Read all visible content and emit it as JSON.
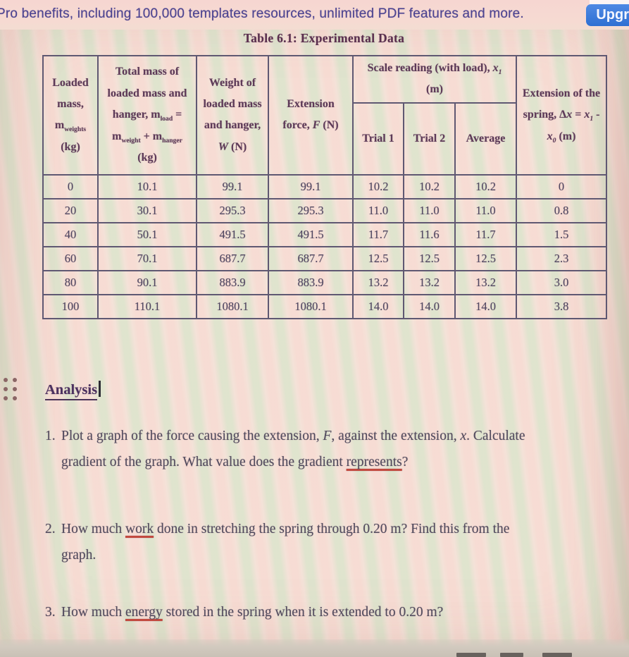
{
  "banner": {
    "text": "Pro benefits, including 100,000 templates resources, unlimited PDF features and more.",
    "upgrade_label": "Upgr",
    "button_color": "#2f6fd2",
    "text_color": "#4c4390"
  },
  "document": {
    "table_title": "Table 6.1: Experimental Data",
    "table": {
      "headers": {
        "loaded_mass_html": "Loaded mass, m<sub>weights</sub> (kg)",
        "total_mass_html": "Total mass of loaded mass and hanger, m<sub>load</sub> = m<sub>weight</sub> + m<sub>hanger</sub> (kg)",
        "weight_html": "Weight of loaded mass and hanger, <em>W</em> (N)",
        "extension_force_html": "Extension force, <em>F</em> (N)",
        "scale_reading_html": "Scale reading (with load), <em>x<sub>1</sub></em> (m)",
        "trial1": "Trial 1",
        "trial2": "Trial 2",
        "average": "Average",
        "extension_spring_html": "Extension of the spring, Δ<em>x</em> = <em>x<sub>1</sub></em> - <em>x<sub>0</sub></em> (m)"
      },
      "rows": [
        [
          "0",
          "10.1",
          "99.1",
          "99.1",
          "10.2",
          "10.2",
          "10.2",
          "0"
        ],
        [
          "20",
          "30.1",
          "295.3",
          "295.3",
          "11.0",
          "11.0",
          "11.0",
          "0.8"
        ],
        [
          "40",
          "50.1",
          "491.5",
          "491.5",
          "11.7",
          "11.6",
          "11.7",
          "1.5"
        ],
        [
          "60",
          "70.1",
          "687.7",
          "687.7",
          "12.5",
          "12.5",
          "12.5",
          "2.3"
        ],
        [
          "80",
          "90.1",
          "883.9",
          "883.9",
          "13.2",
          "13.2",
          "13.2",
          "3.0"
        ],
        [
          "100",
          "110.1",
          "1080.1",
          "1080.1",
          "14.0",
          "14.0",
          "14.0",
          "3.8"
        ]
      ]
    },
    "analysis_heading": "Analysis",
    "questions": [
      {
        "num": "1.",
        "text_html": "Plot a graph of the force causing the extension, <em>F</em>, against the extension, <em>x</em>. Calculate<br>gradient of the graph. What value does the gradient <u>represents</u>?"
      },
      {
        "num": "2.",
        "text_html": "How much <u>work</u> done in stretching the spring through 0.20 m? Find this from the<br>graph."
      },
      {
        "num": "3.",
        "text_html": "How much <u>energy</u> stored in the spring when it is extended to 0.20 m?"
      }
    ],
    "misspell_underline_color": "#c2493f"
  }
}
